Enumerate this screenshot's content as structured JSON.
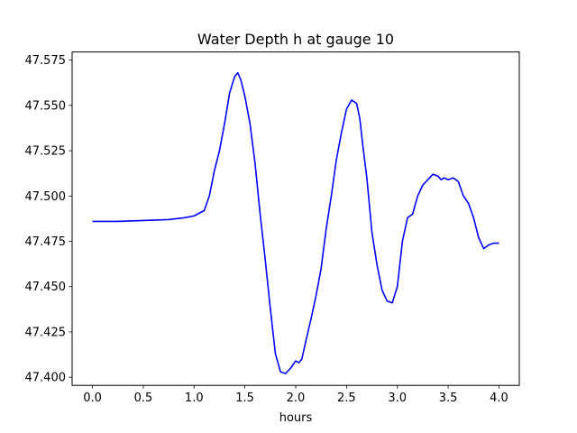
{
  "chart_data": {
    "type": "line",
    "title": "Water Depth h at gauge 10",
    "xlabel": "hours",
    "ylabel": "",
    "xlim": [
      -0.2,
      4.2
    ],
    "ylim": [
      47.3955,
      47.5795
    ],
    "xticks": [
      0.0,
      0.5,
      1.0,
      1.5,
      2.0,
      2.5,
      3.0,
      3.5,
      4.0
    ],
    "xtick_labels": [
      "0.0",
      "0.5",
      "1.0",
      "1.5",
      "2.0",
      "2.5",
      "3.0",
      "3.5",
      "4.0"
    ],
    "yticks": [
      47.4,
      47.425,
      47.45,
      47.475,
      47.5,
      47.525,
      47.55,
      47.575
    ],
    "ytick_labels": [
      "47.400",
      "47.425",
      "47.450",
      "47.475",
      "47.500",
      "47.525",
      "47.550",
      "47.575"
    ],
    "grid": false,
    "series": [
      {
        "color": "#0000ff",
        "x": [
          0.0,
          0.25,
          0.5,
          0.75,
          0.9,
          1.0,
          1.1,
          1.15,
          1.2,
          1.25,
          1.3,
          1.35,
          1.4,
          1.43,
          1.46,
          1.5,
          1.55,
          1.6,
          1.65,
          1.7,
          1.75,
          1.8,
          1.85,
          1.9,
          1.95,
          2.0,
          2.03,
          2.06,
          2.1,
          2.15,
          2.2,
          2.25,
          2.3,
          2.35,
          2.4,
          2.45,
          2.5,
          2.55,
          2.6,
          2.63,
          2.66,
          2.7,
          2.75,
          2.8,
          2.85,
          2.9,
          2.95,
          3.0,
          3.02,
          3.05,
          3.1,
          3.15,
          3.2,
          3.25,
          3.3,
          3.35,
          3.4,
          3.43,
          3.46,
          3.5,
          3.55,
          3.6,
          3.65,
          3.7,
          3.75,
          3.8,
          3.85,
          3.9,
          3.95,
          4.0
        ],
        "y": [
          47.486,
          47.486,
          47.4865,
          47.487,
          47.488,
          47.489,
          47.492,
          47.5,
          47.514,
          47.525,
          47.54,
          47.557,
          47.566,
          47.568,
          47.564,
          47.555,
          47.54,
          47.518,
          47.49,
          47.465,
          47.438,
          47.413,
          47.403,
          47.402,
          47.405,
          47.409,
          47.408,
          47.41,
          47.42,
          47.432,
          47.445,
          47.46,
          47.482,
          47.5,
          47.52,
          47.535,
          47.548,
          47.553,
          47.551,
          47.543,
          47.528,
          47.51,
          47.48,
          47.462,
          47.448,
          47.442,
          47.441,
          47.45,
          47.46,
          47.475,
          47.488,
          47.49,
          47.5,
          47.506,
          47.509,
          47.512,
          47.511,
          47.509,
          47.51,
          47.509,
          47.51,
          47.508,
          47.5,
          47.496,
          47.488,
          47.477,
          47.471,
          47.473,
          47.474,
          47.474
        ]
      }
    ]
  }
}
